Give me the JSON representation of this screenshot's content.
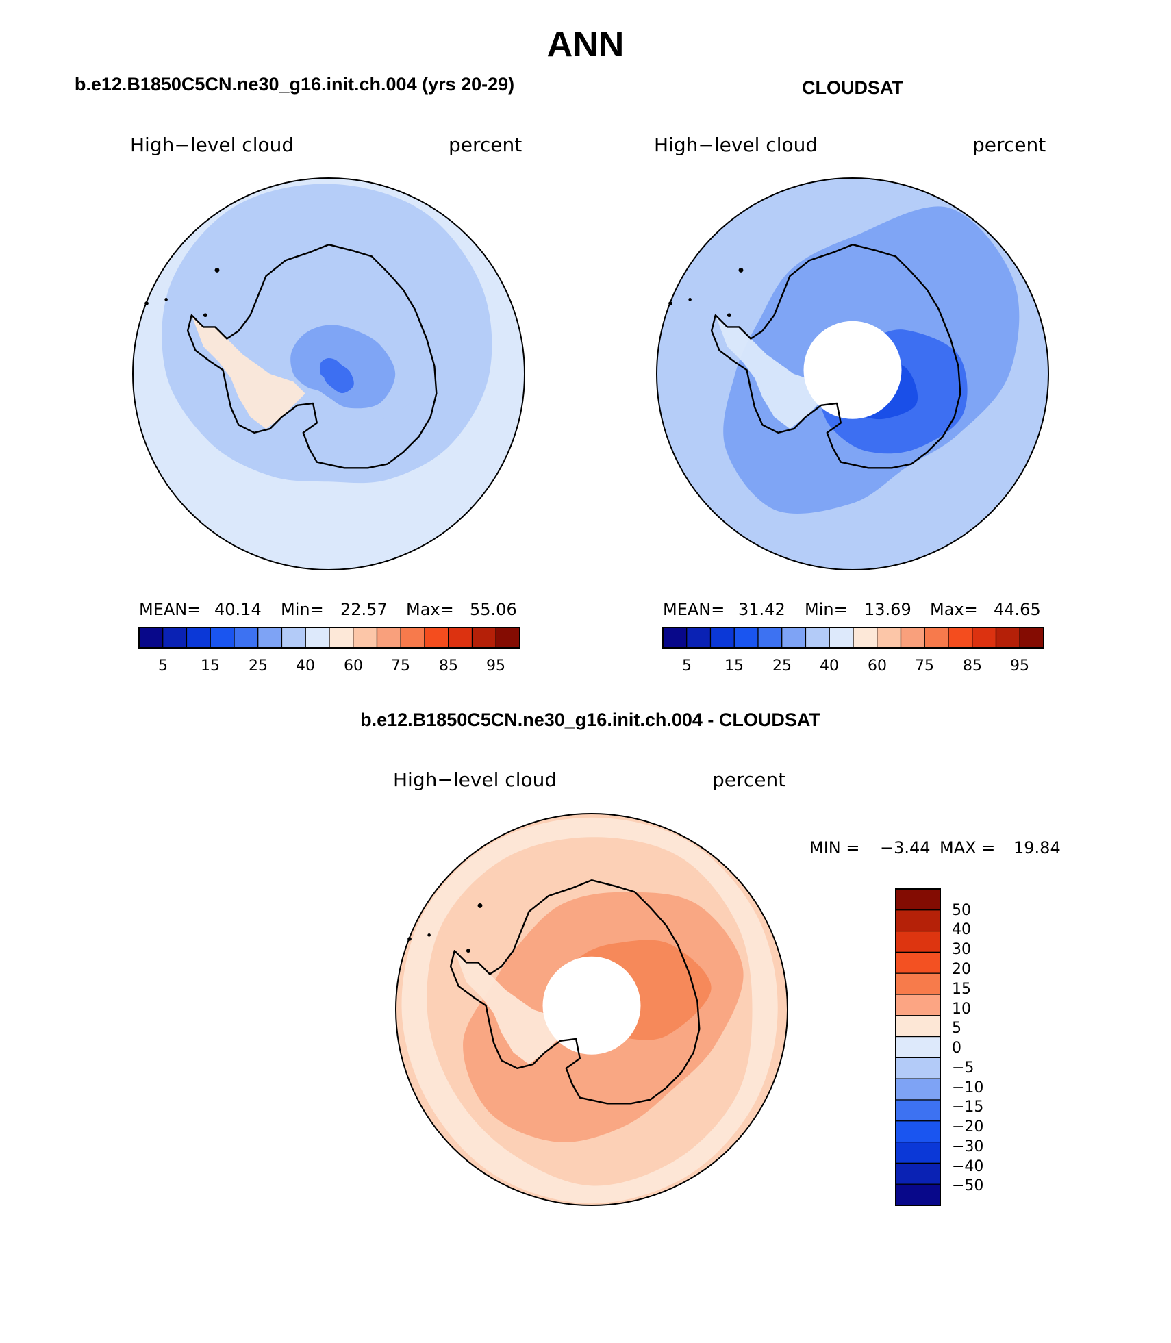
{
  "page": {
    "title": "ANN"
  },
  "panels": [
    {
      "id": "model",
      "case_title": "b.e12.B1850C5CN.ne30_g16.init.ch.004 (yrs 20-29)",
      "left_label": "High−level cloud",
      "right_label": "percent",
      "stats": {
        "mean_label": "MEAN=",
        "mean": "40.14",
        "min_label": "Min=",
        "min": "22.57",
        "max_label": "Max=",
        "max": "55.06"
      },
      "colorbar": {
        "colors": [
          "#08088a",
          "#0a22b4",
          "#0b38d7",
          "#1a55f0",
          "#3d72f2",
          "#7ea3f5",
          "#b3cbf8",
          "#dde9fb",
          "#fde8d8",
          "#fcc6a8",
          "#f9a07c",
          "#f77a4c",
          "#f44d1e",
          "#dc3210",
          "#b52008",
          "#840c02"
        ],
        "tick_labels": [
          "5",
          "15",
          "25",
          "40",
          "60",
          "75",
          "85",
          "95"
        ]
      },
      "map": {
        "ocean_fill": "#dbe8fb",
        "blobs": [
          {
            "fill": "#b5cdf8",
            "r": [
              0.97,
              0.96,
              0.9,
              0.82,
              0.72,
              0.62,
              0.55,
              0.6,
              0.7,
              0.83,
              0.93,
              0.98
            ],
            "rot": 0
          },
          {
            "fill": "#b5cdf8",
            "r": [
              0.55,
              0.55,
              0.52,
              0.48,
              0.36,
              0.28,
              0.25,
              0.3,
              0.42,
              0.5,
              0.55,
              0.56
            ],
            "rot": 10
          },
          {
            "fill": "#7fa5f5",
            "r": [
              0.26,
              0.3,
              0.34,
              0.3,
              0.2,
              0.12,
              0.1,
              0.13,
              0.18,
              0.22,
              0.24,
              0.25
            ],
            "rot": 30
          },
          {
            "fill": "#3d6ff2",
            "r": [
              0.08,
              0.11,
              0.14,
              0.12,
              0.06,
              0.04,
              0.03,
              0.04,
              0.05,
              0.07,
              0.08,
              0.08
            ],
            "rot": 55
          }
        ],
        "peninsula_fill": "#fde8d8",
        "pole_hole": false
      }
    },
    {
      "id": "obs",
      "case_title": "CLOUDSAT",
      "left_label": "High−level cloud",
      "right_label": "percent",
      "stats": {
        "mean_label": "MEAN=",
        "mean": "31.42",
        "min_label": "Min=",
        "min": "13.69",
        "max_label": "Max=",
        "max": "44.65"
      },
      "colorbar": {
        "colors": [
          "#08088a",
          "#0a22b4",
          "#0b38d7",
          "#1a55f0",
          "#3d72f2",
          "#7ea3f5",
          "#b3cbf8",
          "#dde9fb",
          "#fde8d8",
          "#fcc6a8",
          "#f9a07c",
          "#f77a4c",
          "#f44d1e",
          "#dc3210",
          "#b52008",
          "#840c02"
        ],
        "tick_labels": [
          "5",
          "15",
          "25",
          "40",
          "60",
          "75",
          "85",
          "95"
        ]
      },
      "map": {
        "ocean_fill": "#b5cdf8",
        "blobs": [
          {
            "fill": "#7fa5f5",
            "r": [
              0.7,
              0.98,
              0.95,
              0.8,
              0.62,
              0.55,
              0.66,
              0.8,
              0.75,
              0.6,
              0.55,
              0.62
            ],
            "rot": 0
          },
          {
            "fill": "#3d6ff2",
            "r": [
              0.18,
              0.35,
              0.55,
              0.6,
              0.5,
              0.4,
              0.3,
              0.22,
              0.18,
              0.15,
              0.14,
              0.16
            ],
            "rot": 20
          },
          {
            "fill": "#1a4fe8",
            "r": [
              0.05,
              0.14,
              0.28,
              0.36,
              0.28,
              0.2,
              0.12,
              0.06,
              0.05,
              0.05,
              0.05,
              0.05
            ],
            "rot": 25
          }
        ],
        "peninsula_fill": "#dbe8fb",
        "pole_hole": true
      }
    },
    {
      "id": "diff",
      "case_title": "b.e12.B1850C5CN.ne30_g16.init.ch.004 - CLOUDSAT",
      "left_label": "High−level cloud",
      "right_label": "percent",
      "stats": {
        "min_label": "MIN =",
        "min": "−3.44",
        "max_label": "MAX =",
        "max": "19.84"
      },
      "colorbar": {
        "colors": [
          "#830c02",
          "#b52108",
          "#dd3510",
          "#f35122",
          "#f77b4b",
          "#fca583",
          "#fde7d6",
          "#dde9fb",
          "#b3cbf8",
          "#7ea3f5",
          "#3d72f2",
          "#1a55f0",
          "#0b38d7",
          "#0a22b4",
          "#08088a"
        ],
        "tick_labels": [
          "50",
          "40",
          "30",
          "20",
          "15",
          "10",
          "5",
          "0",
          "−5",
          "−10",
          "−15",
          "−20",
          "−30",
          "−40",
          "−50"
        ]
      },
      "map": {
        "ocean_fill": "#fcd0b6",
        "blobs": [
          {
            "fill": "#fde6d6",
            "r": [
              0.98,
              0.99,
              0.97,
              0.95,
              0.96,
              0.98,
              0.99,
              0.98,
              0.96,
              0.97,
              0.99,
              0.99
            ],
            "rot": 0
          },
          {
            "fill": "#fcd0b6",
            "r": [
              0.88,
              0.9,
              0.86,
              0.82,
              0.86,
              0.88,
              0.9,
              0.84,
              0.82,
              0.84,
              0.88,
              0.89
            ],
            "rot": 0
          },
          {
            "fill": "#f9a783",
            "r": [
              0.62,
              0.76,
              0.8,
              0.66,
              0.58,
              0.62,
              0.7,
              0.74,
              0.68,
              0.52,
              0.5,
              0.56
            ],
            "rot": 15
          },
          {
            "fill": "#f6895a",
            "r": [
              0.36,
              0.52,
              0.62,
              0.4,
              0.18,
              0.12,
              0.14,
              0.22,
              0.2,
              0.16,
              0.2,
              0.28
            ],
            "rot": 20
          }
        ],
        "peninsula_fill": "#fde6d6",
        "pole_hole": true
      }
    }
  ]
}
